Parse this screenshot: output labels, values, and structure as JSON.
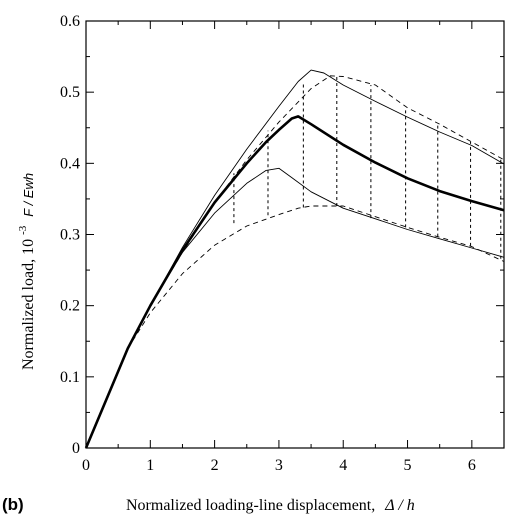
{
  "panel_label": "(b)",
  "chart_data": {
    "type": "line",
    "xlabel": "Normalized loading-line displacement,",
    "xlabel_symbol": "Δ / h",
    "ylabel": "Normalized load, 10",
    "ylabel_exponent": "-3",
    "ylabel_symbol": "F / Ewh",
    "xlim": [
      0,
      6.5
    ],
    "ylim": [
      0,
      0.6
    ],
    "x_ticks": [
      0,
      1,
      2,
      3,
      4,
      5,
      6
    ],
    "y_ticks": [
      0,
      0.1,
      0.2,
      0.3,
      0.4,
      0.5,
      0.6
    ],
    "grid": false,
    "series": [
      {
        "role": "mean",
        "style": "thick-solid",
        "points": [
          [
            0,
            0
          ],
          [
            0.65,
            0.14
          ],
          [
            1,
            0.2
          ],
          [
            1.5,
            0.278
          ],
          [
            2,
            0.345
          ],
          [
            2.5,
            0.4
          ],
          [
            2.8,
            0.43
          ],
          [
            3,
            0.447
          ],
          [
            3.2,
            0.463
          ],
          [
            3.3,
            0.466
          ],
          [
            3.5,
            0.455
          ],
          [
            4,
            0.426
          ],
          [
            4.5,
            0.401
          ],
          [
            5,
            0.379
          ],
          [
            5.5,
            0.361
          ],
          [
            6,
            0.347
          ],
          [
            6.5,
            0.334
          ]
        ]
      },
      {
        "role": "upper-solid",
        "style": "thin-solid",
        "points": [
          [
            0,
            0
          ],
          [
            0.65,
            0.14
          ],
          [
            1,
            0.2
          ],
          [
            1.5,
            0.282
          ],
          [
            2,
            0.355
          ],
          [
            2.5,
            0.42
          ],
          [
            3,
            0.48
          ],
          [
            3.3,
            0.515
          ],
          [
            3.5,
            0.531
          ],
          [
            3.7,
            0.527
          ],
          [
            4,
            0.51
          ],
          [
            4.5,
            0.487
          ],
          [
            5,
            0.465
          ],
          [
            5.5,
            0.444
          ],
          [
            6,
            0.425
          ],
          [
            6.5,
            0.399
          ]
        ]
      },
      {
        "role": "lower-solid",
        "style": "thin-solid",
        "points": [
          [
            0,
            0
          ],
          [
            0.65,
            0.14
          ],
          [
            1,
            0.2
          ],
          [
            1.5,
            0.275
          ],
          [
            2,
            0.33
          ],
          [
            2.5,
            0.372
          ],
          [
            2.8,
            0.39
          ],
          [
            3,
            0.393
          ],
          [
            3.2,
            0.38
          ],
          [
            3.5,
            0.36
          ],
          [
            4,
            0.337
          ],
          [
            4.5,
            0.322
          ],
          [
            5,
            0.307
          ],
          [
            5.5,
            0.294
          ],
          [
            6,
            0.281
          ],
          [
            6.5,
            0.268
          ]
        ]
      },
      {
        "role": "upper-dashed",
        "style": "dashed",
        "points": [
          [
            0,
            0
          ],
          [
            0.65,
            0.14
          ],
          [
            1,
            0.2
          ],
          [
            1.5,
            0.275
          ],
          [
            2,
            0.345
          ],
          [
            2.5,
            0.405
          ],
          [
            3,
            0.458
          ],
          [
            3.5,
            0.505
          ],
          [
            3.8,
            0.523
          ],
          [
            4,
            0.522
          ],
          [
            4.5,
            0.51
          ],
          [
            5,
            0.478
          ],
          [
            5.5,
            0.455
          ],
          [
            6,
            0.43
          ],
          [
            6.5,
            0.405
          ]
        ]
      },
      {
        "role": "lower-dashed",
        "style": "dashed",
        "points": [
          [
            0,
            0
          ],
          [
            0.65,
            0.14
          ],
          [
            1,
            0.19
          ],
          [
            1.5,
            0.245
          ],
          [
            2,
            0.285
          ],
          [
            2.5,
            0.312
          ],
          [
            3,
            0.328
          ],
          [
            3.3,
            0.337
          ],
          [
            3.5,
            0.34
          ],
          [
            4,
            0.34
          ],
          [
            4.5,
            0.325
          ],
          [
            5,
            0.31
          ],
          [
            5.5,
            0.296
          ],
          [
            6,
            0.283
          ],
          [
            6.5,
            0.262
          ]
        ]
      }
    ],
    "error_bars": [
      {
        "x": 2.3,
        "low": 0.316,
        "high": 0.386
      },
      {
        "x": 2.83,
        "low": 0.327,
        "high": 0.446
      },
      {
        "x": 3.38,
        "low": 0.338,
        "high": 0.515
      },
      {
        "x": 3.9,
        "low": 0.34,
        "high": 0.523
      },
      {
        "x": 4.43,
        "low": 0.323,
        "high": 0.51
      },
      {
        "x": 4.97,
        "low": 0.31,
        "high": 0.476
      },
      {
        "x": 5.47,
        "low": 0.297,
        "high": 0.455
      },
      {
        "x": 5.98,
        "low": 0.284,
        "high": 0.43
      },
      {
        "x": 6.45,
        "low": 0.266,
        "high": 0.405
      }
    ]
  }
}
